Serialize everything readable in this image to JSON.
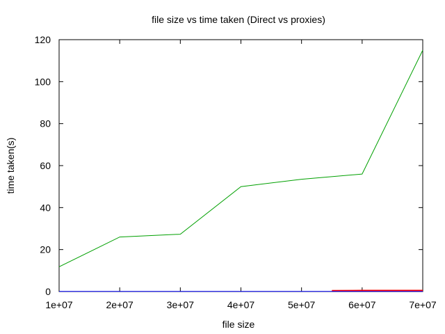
{
  "chart_data": {
    "type": "line",
    "title": "file size vs time taken (Direct vs proxies)",
    "xlabel": "file size",
    "ylabel": "time taken(s)",
    "xlim": [
      10000000,
      70000000
    ],
    "ylim": [
      0,
      120
    ],
    "x_ticks": [
      "1e+07",
      "2e+07",
      "3e+07",
      "4e+07",
      "5e+07",
      "6e+07",
      "7e+07"
    ],
    "y_ticks": [
      "0",
      "20",
      "40",
      "60",
      "80",
      "100",
      "120"
    ],
    "x_tick_values": [
      10000000,
      20000000,
      30000000,
      40000000,
      50000000,
      60000000,
      70000000
    ],
    "y_tick_values": [
      0,
      20,
      40,
      60,
      80,
      100,
      120
    ],
    "grid": false,
    "series": [
      {
        "color": "#00a000",
        "x": [
          10000000,
          20000000,
          30000000,
          40000000,
          50000000,
          60000000,
          70000000
        ],
        "y": [
          11.8,
          26,
          27.3,
          50,
          53.5,
          56,
          115
        ]
      },
      {
        "color": "#ff0000",
        "x": [
          55000000,
          60000000,
          70000000
        ],
        "y": [
          0.4,
          0.5,
          0.5
        ]
      },
      {
        "color": "#0000ff",
        "x": [
          10000000,
          20000000,
          30000000,
          40000000,
          50000000,
          60000000,
          70000000
        ],
        "y": [
          0.1,
          0.1,
          0.1,
          0.1,
          0.1,
          0.1,
          0.1
        ]
      }
    ]
  }
}
